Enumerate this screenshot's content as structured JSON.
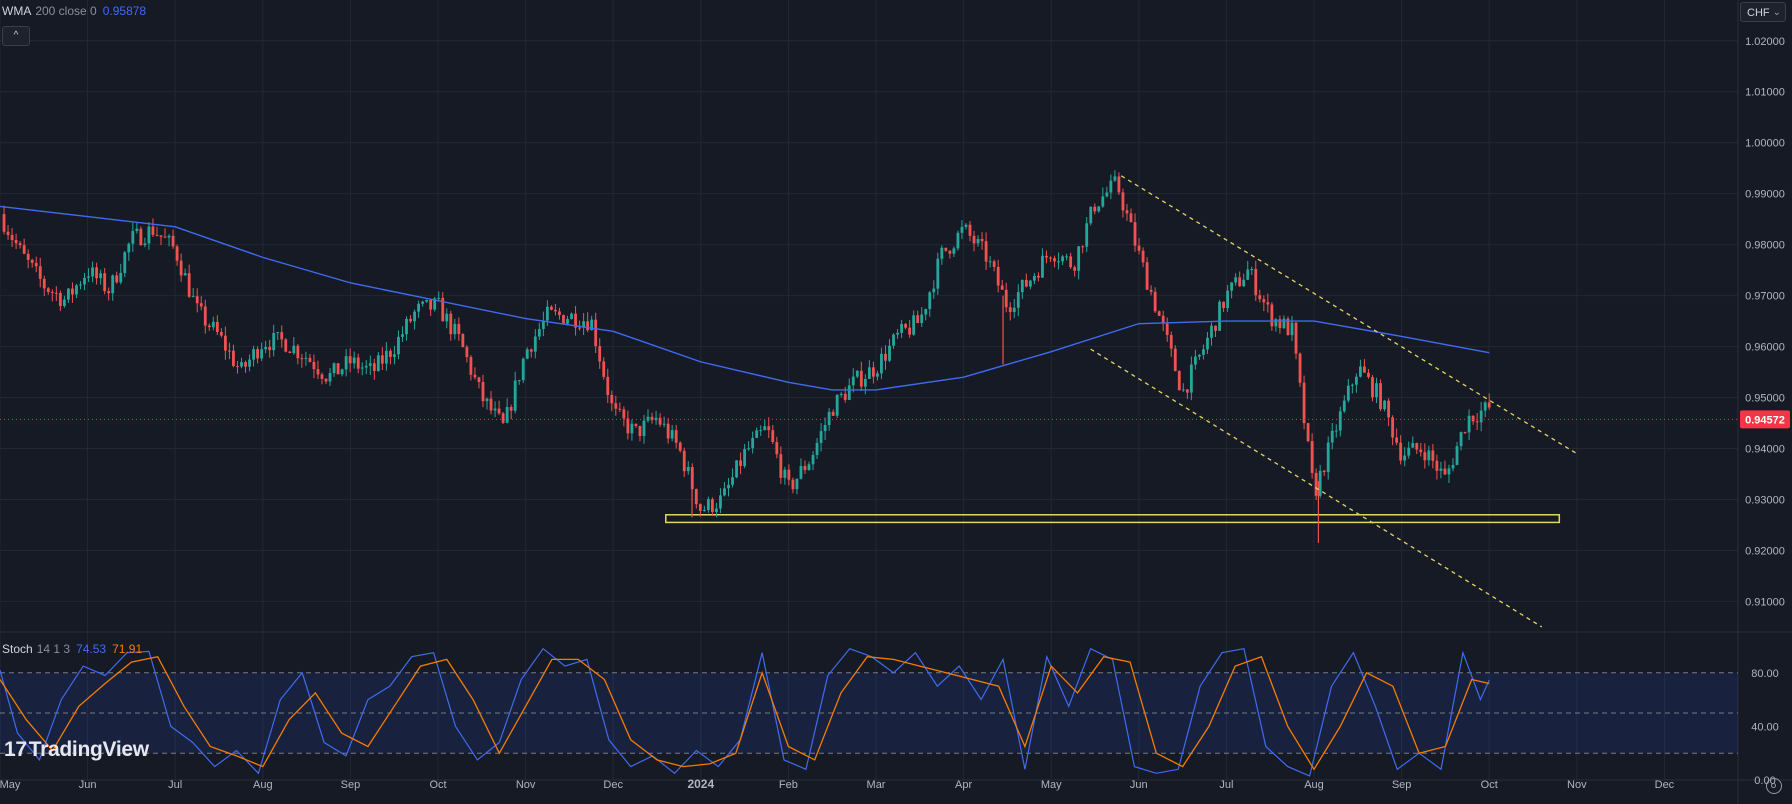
{
  "main_legend": {
    "name": "WMA",
    "params": "200 close 0",
    "value": "0.95878"
  },
  "stoch_legend": {
    "name": "Stoch",
    "params": "14 1 3",
    "k_value": "74.53",
    "d_value": "71.91"
  },
  "currency": {
    "label": "CHF"
  },
  "collapse_button": {
    "label": "^"
  },
  "brand": {
    "text": "TradingView",
    "mark": "17"
  },
  "colors": {
    "background": "#161a25",
    "up": "#26a69a",
    "down": "#ef5350",
    "wma": "#3f6bf0",
    "stoch_k": "#3f6bf0",
    "stoch_d": "#f57c00",
    "trend": "#e3d663",
    "support": "#e3d663",
    "price_tag": "#f23645"
  },
  "chart_data": {
    "type": "candlestick",
    "price_axis": {
      "ylim": [
        0.904,
        1.028
      ],
      "ticks": [
        "1.02000",
        "1.01000",
        "1.00000",
        "0.99000",
        "0.98000",
        "0.97000",
        "0.96000",
        "0.95000",
        "0.94000",
        "0.93000",
        "0.92000",
        "0.91000"
      ]
    },
    "time_axis": {
      "labels": [
        {
          "text": "May",
          "t": 0
        },
        {
          "text": "Jun",
          "t": 1
        },
        {
          "text": "Jul",
          "t": 2
        },
        {
          "text": "Aug",
          "t": 3
        },
        {
          "text": "Sep",
          "t": 4
        },
        {
          "text": "Oct",
          "t": 5
        },
        {
          "text": "Nov",
          "t": 6
        },
        {
          "text": "Dec",
          "t": 7
        },
        {
          "text": "2024",
          "t": 8
        },
        {
          "text": "Feb",
          "t": 9
        },
        {
          "text": "Mar",
          "t": 10
        },
        {
          "text": "Apr",
          "t": 11
        },
        {
          "text": "May",
          "t": 12
        },
        {
          "text": "Jun",
          "t": 13
        },
        {
          "text": "Jul",
          "t": 14
        },
        {
          "text": "Aug",
          "t": 15
        },
        {
          "text": "Sep",
          "t": 16
        },
        {
          "text": "Oct",
          "t": 17
        },
        {
          "text": "Nov",
          "t": 18
        },
        {
          "text": "Dec",
          "t": 19
        }
      ],
      "xlim": [
        0,
        19.84
      ]
    },
    "close_path": [
      [
        0,
        0.986
      ],
      [
        0.25,
        0.978
      ],
      [
        0.5,
        0.972
      ],
      [
        0.75,
        0.969
      ],
      [
        1.0,
        0.975
      ],
      [
        1.25,
        0.971
      ],
      [
        1.5,
        0.981
      ],
      [
        1.75,
        0.983
      ],
      [
        2.0,
        0.979
      ],
      [
        2.25,
        0.967
      ],
      [
        2.5,
        0.962
      ],
      [
        2.75,
        0.955
      ],
      [
        3.0,
        0.961
      ],
      [
        3.25,
        0.961
      ],
      [
        3.5,
        0.958
      ],
      [
        3.75,
        0.954
      ],
      [
        4.0,
        0.957
      ],
      [
        4.25,
        0.955
      ],
      [
        4.5,
        0.96
      ],
      [
        4.75,
        0.967
      ],
      [
        5.0,
        0.968
      ],
      [
        5.25,
        0.961
      ],
      [
        5.5,
        0.95
      ],
      [
        5.75,
        0.944
      ],
      [
        6.0,
        0.959
      ],
      [
        6.25,
        0.966
      ],
      [
        6.5,
        0.966
      ],
      [
        6.75,
        0.965
      ],
      [
        7.0,
        0.947
      ],
      [
        7.25,
        0.943
      ],
      [
        7.5,
        0.946
      ],
      [
        7.75,
        0.94
      ],
      [
        8.0,
        0.928
      ],
      [
        8.25,
        0.93
      ],
      [
        8.5,
        0.939
      ],
      [
        8.75,
        0.944
      ],
      [
        9.0,
        0.932
      ],
      [
        9.25,
        0.938
      ],
      [
        9.5,
        0.948
      ],
      [
        9.75,
        0.953
      ],
      [
        10.0,
        0.956
      ],
      [
        10.25,
        0.962
      ],
      [
        10.5,
        0.965
      ],
      [
        10.75,
        0.978
      ],
      [
        11.0,
        0.983
      ],
      [
        11.25,
        0.978
      ],
      [
        11.5,
        0.968
      ],
      [
        11.75,
        0.973
      ],
      [
        12.0,
        0.979
      ],
      [
        12.25,
        0.976
      ],
      [
        12.5,
        0.988
      ],
      [
        12.75,
        0.992
      ],
      [
        13.0,
        0.978
      ],
      [
        13.25,
        0.965
      ],
      [
        13.5,
        0.951
      ],
      [
        13.75,
        0.96
      ],
      [
        14.0,
        0.97
      ],
      [
        14.25,
        0.975
      ],
      [
        14.5,
        0.966
      ],
      [
        14.75,
        0.963
      ],
      [
        15.0,
        0.931
      ],
      [
        15.25,
        0.944
      ],
      [
        15.5,
        0.956
      ],
      [
        15.75,
        0.95
      ],
      [
        16.0,
        0.939
      ],
      [
        16.25,
        0.94
      ],
      [
        16.5,
        0.934
      ],
      [
        16.75,
        0.946
      ],
      [
        17.0,
        0.948
      ]
    ],
    "low_wicks": [
      {
        "t": 7.9,
        "low": 0.9265
      },
      {
        "t": 11.45,
        "low": 0.9565
      },
      {
        "t": 15.05,
        "low": 0.9215
      }
    ],
    "wma_line": [
      [
        0,
        0.9875
      ],
      [
        1,
        0.9855
      ],
      [
        2,
        0.9835
      ],
      [
        3,
        0.9775
      ],
      [
        4,
        0.9725
      ],
      [
        5,
        0.969
      ],
      [
        6,
        0.9655
      ],
      [
        7,
        0.963
      ],
      [
        8,
        0.957
      ],
      [
        9,
        0.953
      ],
      [
        9.5,
        0.9515
      ],
      [
        10,
        0.9515
      ],
      [
        11,
        0.954
      ],
      [
        12,
        0.959
      ],
      [
        13,
        0.9645
      ],
      [
        14,
        0.965
      ],
      [
        15,
        0.965
      ],
      [
        16,
        0.962
      ],
      [
        17,
        0.9588
      ]
    ],
    "last_price": "0.94572",
    "trendlines": [
      {
        "from": [
          12.8,
          0.9935
        ],
        "to": [
          18.0,
          0.939
        ]
      },
      {
        "from": [
          12.45,
          0.9595
        ],
        "to": [
          17.6,
          0.905
        ]
      }
    ],
    "support_zone": {
      "t0": 7.6,
      "t1": 17.8,
      "y_low": 0.9255,
      "y_high": 0.927
    },
    "stochastic": {
      "ylim": [
        0,
        100
      ],
      "ticks": [
        "80.00",
        "40.00",
        "0.00"
      ],
      "levels": [
        80,
        50,
        20
      ],
      "d_line": [
        [
          0,
          75
        ],
        [
          0.3,
          45
        ],
        [
          0.6,
          22
        ],
        [
          0.9,
          55
        ],
        [
          1.2,
          72
        ],
        [
          1.5,
          88
        ],
        [
          1.8,
          92
        ],
        [
          2.1,
          55
        ],
        [
          2.4,
          25
        ],
        [
          2.7,
          18
        ],
        [
          3.0,
          10
        ],
        [
          3.3,
          45
        ],
        [
          3.6,
          65
        ],
        [
          3.9,
          35
        ],
        [
          4.2,
          25
        ],
        [
          4.5,
          55
        ],
        [
          4.8,
          85
        ],
        [
          5.1,
          90
        ],
        [
          5.4,
          60
        ],
        [
          5.7,
          20
        ],
        [
          6.0,
          55
        ],
        [
          6.3,
          90
        ],
        [
          6.6,
          90
        ],
        [
          6.9,
          75
        ],
        [
          7.2,
          30
        ],
        [
          7.5,
          15
        ],
        [
          7.8,
          10
        ],
        [
          8.1,
          12
        ],
        [
          8.4,
          20
        ],
        [
          8.7,
          80
        ],
        [
          9.0,
          25
        ],
        [
          9.3,
          15
        ],
        [
          9.6,
          65
        ],
        [
          9.9,
          92
        ],
        [
          10.2,
          90
        ],
        [
          10.5,
          85
        ],
        [
          10.8,
          80
        ],
        [
          11.1,
          75
        ],
        [
          11.4,
          70
        ],
        [
          11.7,
          25
        ],
        [
          12.0,
          85
        ],
        [
          12.3,
          65
        ],
        [
          12.6,
          92
        ],
        [
          12.9,
          88
        ],
        [
          13.2,
          20
        ],
        [
          13.5,
          10
        ],
        [
          13.8,
          40
        ],
        [
          14.1,
          85
        ],
        [
          14.4,
          92
        ],
        [
          14.7,
          40
        ],
        [
          15.0,
          8
        ],
        [
          15.3,
          40
        ],
        [
          15.6,
          80
        ],
        [
          15.9,
          70
        ],
        [
          16.2,
          20
        ],
        [
          16.5,
          25
        ],
        [
          16.8,
          75
        ],
        [
          17.0,
          72
        ]
      ],
      "k_line": [
        [
          0,
          82
        ],
        [
          0.2,
          35
        ],
        [
          0.45,
          15
        ],
        [
          0.7,
          60
        ],
        [
          0.95,
          85
        ],
        [
          1.2,
          78
        ],
        [
          1.45,
          95
        ],
        [
          1.7,
          96
        ],
        [
          1.95,
          40
        ],
        [
          2.2,
          28
        ],
        [
          2.45,
          10
        ],
        [
          2.7,
          22
        ],
        [
          2.95,
          5
        ],
        [
          3.2,
          60
        ],
        [
          3.45,
          80
        ],
        [
          3.7,
          28
        ],
        [
          3.95,
          18
        ],
        [
          4.2,
          60
        ],
        [
          4.45,
          70
        ],
        [
          4.7,
          92
        ],
        [
          4.95,
          95
        ],
        [
          5.2,
          40
        ],
        [
          5.45,
          15
        ],
        [
          5.7,
          28
        ],
        [
          5.95,
          75
        ],
        [
          6.2,
          98
        ],
        [
          6.45,
          85
        ],
        [
          6.7,
          90
        ],
        [
          6.95,
          30
        ],
        [
          7.2,
          10
        ],
        [
          7.45,
          18
        ],
        [
          7.7,
          5
        ],
        [
          7.95,
          22
        ],
        [
          8.2,
          10
        ],
        [
          8.45,
          30
        ],
        [
          8.7,
          95
        ],
        [
          8.95,
          15
        ],
        [
          9.2,
          8
        ],
        [
          9.45,
          78
        ],
        [
          9.7,
          98
        ],
        [
          9.95,
          92
        ],
        [
          10.2,
          80
        ],
        [
          10.45,
          95
        ],
        [
          10.7,
          70
        ],
        [
          10.95,
          85
        ],
        [
          11.2,
          60
        ],
        [
          11.45,
          90
        ],
        [
          11.7,
          8
        ],
        [
          11.95,
          92
        ],
        [
          12.2,
          55
        ],
        [
          12.45,
          98
        ],
        [
          12.7,
          90
        ],
        [
          12.95,
          10
        ],
        [
          13.2,
          5
        ],
        [
          13.45,
          8
        ],
        [
          13.7,
          70
        ],
        [
          13.95,
          95
        ],
        [
          14.2,
          98
        ],
        [
          14.45,
          25
        ],
        [
          14.7,
          10
        ],
        [
          14.95,
          3
        ],
        [
          15.2,
          70
        ],
        [
          15.45,
          95
        ],
        [
          15.7,
          55
        ],
        [
          15.95,
          8
        ],
        [
          16.2,
          20
        ],
        [
          16.45,
          8
        ],
        [
          16.7,
          95
        ],
        [
          16.9,
          60
        ],
        [
          17.0,
          74.5
        ]
      ]
    }
  }
}
